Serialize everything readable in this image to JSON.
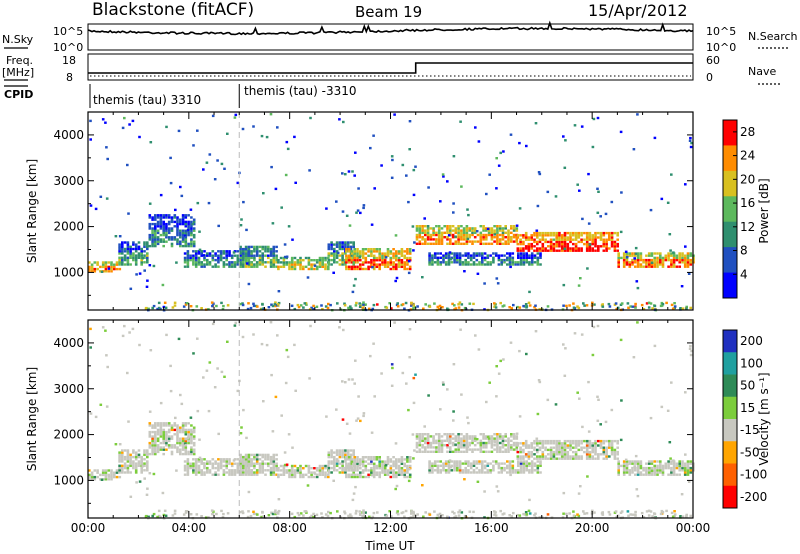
{
  "header": {
    "title": "Blackstone (fitACF)",
    "beam": "Beam 19",
    "date": "15/Apr/2012"
  },
  "noise_panel": {
    "left_label": "N.Sky",
    "right_label": "N.Search",
    "left_ticks": [
      "10^5",
      "10^0"
    ],
    "right_ticks": [
      "10^5",
      "10^0"
    ]
  },
  "freq_panel": {
    "left_label": "Freq.",
    "left_unit": "[MHz]",
    "right_label": "Nave",
    "left_ticks": [
      "18",
      "8"
    ],
    "right_ticks": [
      "60",
      "0"
    ],
    "freq_step_time_h": 13.0
  },
  "cpid_panel": {
    "label": "CPID",
    "programs": [
      {
        "name": "themis (tau) 3310",
        "start_h": 0
      },
      {
        "name": "themis (tau) -3310",
        "start_h": 6
      }
    ]
  },
  "chart_data": [
    {
      "type": "heatmap",
      "quantity": "power",
      "ylabel": "Slant Range [km]",
      "xlabel": "Time UT",
      "x_ticks": [
        "00:00",
        "04:00",
        "08:00",
        "12:00",
        "16:00",
        "20:00",
        "00:00"
      ],
      "x_range_h": [
        0,
        24
      ],
      "y_ticks": [
        1000,
        2000,
        3000,
        4000
      ],
      "y_range_km": [
        180,
        4500
      ],
      "colorbar": {
        "label": "Power [dB]",
        "ticks": [
          4,
          8,
          12,
          16,
          20,
          24,
          28
        ],
        "range": [
          0,
          30
        ],
        "colors": [
          "#0000ff",
          "#2050c0",
          "#2f8f6f",
          "#5cb85c",
          "#d8c020",
          "#ff8c00",
          "#ff0000"
        ]
      }
    },
    {
      "type": "heatmap",
      "quantity": "velocity",
      "ylabel": "Slant Range [km]",
      "xlabel": "Time UT",
      "x_ticks": [
        "00:00",
        "04:00",
        "08:00",
        "12:00",
        "16:00",
        "20:00",
        "00:00"
      ],
      "x_range_h": [
        0,
        24
      ],
      "y_ticks": [
        1000,
        2000,
        3000,
        4000
      ],
      "y_range_km": [
        180,
        4500
      ],
      "colorbar": {
        "label": "Velocity [m s⁻¹]",
        "ticks": [
          200,
          100,
          50,
          15,
          -15,
          -50,
          -100,
          -200
        ],
        "colors": [
          "#2030c0",
          "#20a0a0",
          "#2e8b57",
          "#7ccd3c",
          "#c8c8c0",
          "#ffa500",
          "#ff6000",
          "#ff0000"
        ]
      }
    }
  ],
  "bands": [
    {
      "t0": 0.0,
      "t1": 1.3,
      "r0": 1050,
      "r1": 1250,
      "power": 20
    },
    {
      "t0": 1.2,
      "t1": 2.4,
      "r0": 1200,
      "r1": 1700,
      "power": 10
    },
    {
      "t0": 2.4,
      "t1": 4.2,
      "r0": 1600,
      "r1": 2300,
      "power": 7
    },
    {
      "t0": 3.8,
      "t1": 6.5,
      "r0": 1150,
      "r1": 1500,
      "power": 9
    },
    {
      "t0": 6.0,
      "t1": 7.5,
      "r0": 1150,
      "r1": 1600,
      "power": 12
    },
    {
      "t0": 7.5,
      "t1": 9.5,
      "r0": 1100,
      "r1": 1350,
      "power": 17
    },
    {
      "t0": 9.5,
      "t1": 10.5,
      "r0": 1200,
      "r1": 1700,
      "power": 11
    },
    {
      "t0": 10.2,
      "t1": 12.8,
      "r0": 1100,
      "r1": 1550,
      "power": 22
    },
    {
      "t0": 13.0,
      "t1": 17.0,
      "r0": 1650,
      "r1": 2050,
      "power": 20
    },
    {
      "t0": 17.0,
      "t1": 21.0,
      "r0": 1500,
      "r1": 1900,
      "power": 25
    },
    {
      "t0": 21.0,
      "t1": 24.0,
      "r0": 1150,
      "r1": 1450,
      "power": 21
    },
    {
      "t0": 13.5,
      "t1": 18.0,
      "r0": 1200,
      "r1": 1450,
      "power": 8
    }
  ]
}
